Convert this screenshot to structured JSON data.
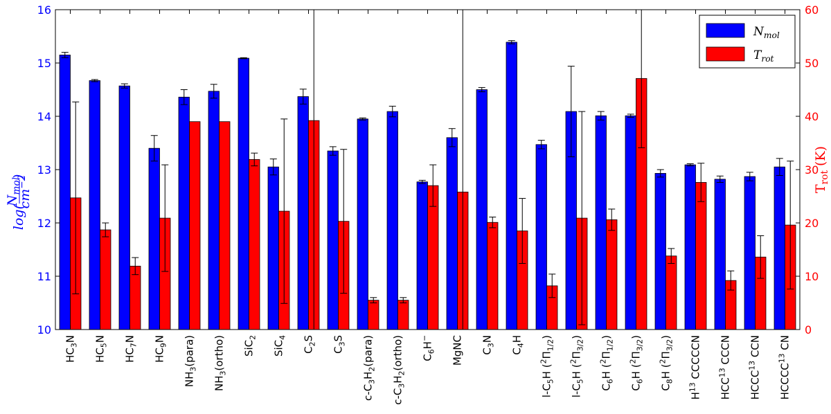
{
  "chart_data": {
    "type": "bar",
    "categories": [
      [
        "HC",
        {
          "sub": "3"
        },
        "N"
      ],
      [
        "HC",
        {
          "sub": "5"
        },
        "N"
      ],
      [
        "HC",
        {
          "sub": "7"
        },
        "N"
      ],
      [
        "HC",
        {
          "sub": "9"
        },
        "N"
      ],
      [
        "NH",
        {
          "sub": "3"
        },
        "(para)"
      ],
      [
        "NH",
        {
          "sub": "3"
        },
        "(ortho)"
      ],
      [
        "SiC",
        {
          "sub": "2"
        }
      ],
      [
        "SiC",
        {
          "sub": "4"
        }
      ],
      [
        "C",
        {
          "sub": "2"
        },
        "S"
      ],
      [
        "C",
        {
          "sub": "3"
        },
        "S"
      ],
      [
        "c-C",
        {
          "sub": "3"
        },
        "H",
        {
          "sub": "2"
        },
        "(para)"
      ],
      [
        "c-C",
        {
          "sub": "3"
        },
        "H",
        {
          "sub": "2"
        },
        "(ortho)"
      ],
      [
        "C",
        {
          "sub": "6"
        },
        "H",
        {
          "sup": "−"
        }
      ],
      [
        "MgNC"
      ],
      [
        "C",
        {
          "sub": "3"
        },
        "N"
      ],
      [
        "C",
        {
          "sub": "4"
        },
        "H"
      ],
      [
        "l-C",
        {
          "sub": "5"
        },
        "H (",
        {
          "sup": "2"
        },
        "Π",
        {
          "sub": "1/2"
        },
        ")"
      ],
      [
        "l-C",
        {
          "sub": "5"
        },
        "H (",
        {
          "sup": "2"
        },
        "Π",
        {
          "sub": "3/2"
        },
        ")"
      ],
      [
        "C",
        {
          "sub": "6"
        },
        "H (",
        {
          "sup": "2"
        },
        "Π",
        {
          "sub": "1/2"
        },
        ")"
      ],
      [
        "C",
        {
          "sub": "6"
        },
        "H (",
        {
          "sup": "2"
        },
        "Π",
        {
          "sub": "3/2"
        },
        ")"
      ],
      [
        "C",
        {
          "sub": "8"
        },
        "H (",
        {
          "sup": "2"
        },
        "Π",
        {
          "sub": "3/2"
        },
        ")"
      ],
      [
        "H",
        {
          "sup": "13"
        },
        " CCCCCN"
      ],
      [
        "HCC",
        {
          "sup": "13"
        },
        " CCCN"
      ],
      [
        "HCCC",
        {
          "sup": "13"
        },
        " CCN"
      ],
      [
        "HCCCC",
        {
          "sup": "13"
        },
        " CN"
      ]
    ],
    "series": [
      {
        "name": "N_mol",
        "axis": "left",
        "color": "#0000ff",
        "values": [
          15.15,
          14.67,
          14.57,
          13.4,
          14.36,
          14.47,
          15.09,
          13.05,
          14.37,
          13.35,
          13.95,
          14.09,
          12.77,
          13.6,
          14.5,
          15.39,
          13.47,
          14.09,
          14.01,
          14.01,
          12.93,
          13.09,
          12.82,
          12.87,
          13.05
        ],
        "err_low": [
          0.05,
          0.02,
          0.04,
          0.24,
          0.14,
          0.13,
          0.01,
          0.15,
          0.14,
          0.08,
          0.02,
          0.1,
          0.03,
          0.17,
          0.04,
          0.03,
          0.08,
          0.85,
          0.08,
          0.03,
          0.07,
          0.02,
          0.06,
          0.08,
          0.16
        ],
        "err_high": [
          0.05,
          0.02,
          0.04,
          0.24,
          0.14,
          0.13,
          0.01,
          0.15,
          0.14,
          0.08,
          0.02,
          0.1,
          0.03,
          0.17,
          0.04,
          0.03,
          0.08,
          0.85,
          0.08,
          0.03,
          0.07,
          0.02,
          0.06,
          0.08,
          0.16
        ]
      },
      {
        "name": "T_rot",
        "axis": "right",
        "color": "#ff0000",
        "values": [
          24.7,
          18.7,
          11.9,
          20.9,
          39.0,
          39.0,
          31.9,
          22.2,
          39.2,
          20.3,
          5.5,
          5.5,
          27.0,
          25.8,
          20.1,
          18.5,
          8.2,
          20.9,
          20.6,
          47.1,
          13.8,
          27.6,
          9.2,
          13.6,
          19.6
        ],
        "err_low": [
          18.0,
          1.3,
          1.6,
          10.0,
          0.0,
          0.0,
          1.2,
          17.3,
          60.0,
          13.5,
          0.5,
          0.5,
          3.9,
          60.0,
          1.0,
          6.1,
          2.2,
          20.0,
          2.0,
          13.0,
          1.4,
          3.6,
          1.8,
          4.0,
          12.0
        ],
        "err_high": [
          18.0,
          1.3,
          1.6,
          10.0,
          0.0,
          0.0,
          1.2,
          17.3,
          60.0,
          13.5,
          0.5,
          0.5,
          3.9,
          60.0,
          1.0,
          6.1,
          2.2,
          20.0,
          2.0,
          13.0,
          1.4,
          3.6,
          1.8,
          4.0,
          12.0
        ]
      }
    ],
    "ylim_left": [
      10,
      16
    ],
    "ylim_right": [
      0,
      60
    ],
    "yticks_left": [
      "10",
      "11",
      "12",
      "13",
      "14",
      "15",
      "16"
    ],
    "yticks_right": [
      "0",
      "10",
      "20",
      "30",
      "40",
      "50",
      "60"
    ],
    "ylabel_left": [
      {
        "t": "log("
      },
      {
        "frac": [
          "N",
          "mol",
          "cm",
          "−2"
        ]
      },
      {
        "t": ")"
      }
    ],
    "ylabel_right": [
      {
        "t": "T"
      },
      {
        "sub": "rot"
      },
      {
        "t": " (K)"
      }
    ],
    "legend": {
      "placement": "top-right",
      "entries": [
        {
          "label": [
            "N",
            {
              "sub": "mol"
            }
          ],
          "color": "#0000ff"
        },
        {
          "label": [
            "T",
            {
              "sub": "rot"
            }
          ],
          "color": "#ff0000"
        }
      ]
    },
    "grid": false
  }
}
